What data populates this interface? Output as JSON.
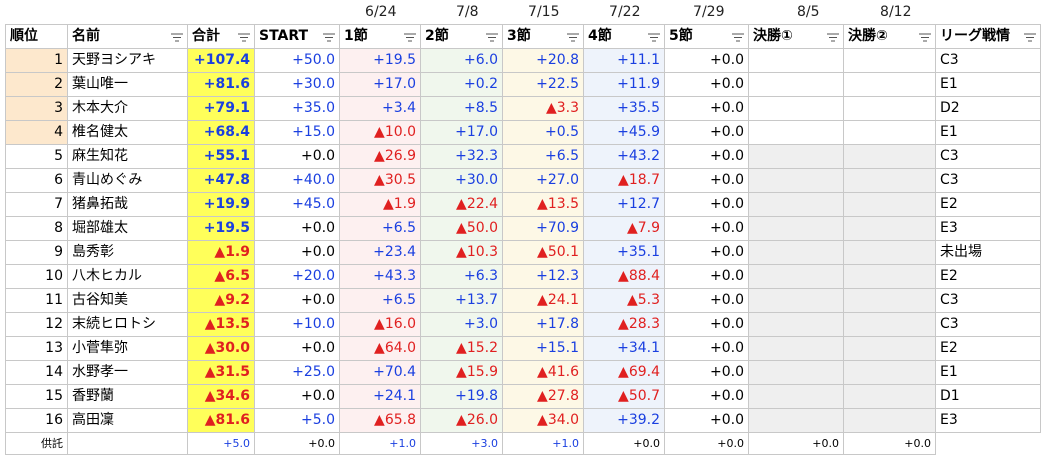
{
  "dates": [
    "6/24",
    "7/8",
    "7/15",
    "7/22",
    "7/29",
    "8/5",
    "8/12"
  ],
  "headers": [
    "順位",
    "名前",
    "合計",
    "START",
    "1節",
    "2節",
    "3節",
    "4節",
    "5節",
    "決勝①",
    "決勝②",
    "リーグ戦情"
  ],
  "table": {
    "rows": [
      {
        "rank": 1,
        "name": "天野ヨシアキ",
        "total": "+107.4",
        "start": "+50.0",
        "s1": "+19.5",
        "s2": "+6.0",
        "s3": "+20.8",
        "s4": "+11.1",
        "s5": "+0.0",
        "league": "C3"
      },
      {
        "rank": 2,
        "name": "葉山唯一",
        "total": "+81.6",
        "start": "+30.0",
        "s1": "+17.0",
        "s2": "+0.2",
        "s3": "+22.5",
        "s4": "+11.9",
        "s5": "+0.0",
        "league": "E1"
      },
      {
        "rank": 3,
        "name": "木本大介",
        "total": "+79.1",
        "start": "+35.0",
        "s1": "+3.4",
        "s2": "+8.5",
        "s3": "▲3.3",
        "s4": "+35.5",
        "s5": "+0.0",
        "league": "D2"
      },
      {
        "rank": 4,
        "name": "椎名健太",
        "total": "+68.4",
        "start": "+15.0",
        "s1": "▲10.0",
        "s2": "+17.0",
        "s3": "+0.5",
        "s4": "+45.9",
        "s5": "+0.0",
        "league": "E1"
      },
      {
        "rank": 5,
        "name": "麻生知花",
        "total": "+55.1",
        "start": "+0.0",
        "s1": "▲26.9",
        "s2": "+32.3",
        "s3": "+6.5",
        "s4": "+43.2",
        "s5": "+0.0",
        "league": "C3"
      },
      {
        "rank": 6,
        "name": "青山めぐみ",
        "total": "+47.8",
        "start": "+40.0",
        "s1": "▲30.5",
        "s2": "+30.0",
        "s3": "+27.0",
        "s4": "▲18.7",
        "s5": "+0.0",
        "league": "C3"
      },
      {
        "rank": 7,
        "name": "猪鼻拓哉",
        "total": "+19.9",
        "start": "+45.0",
        "s1": "▲1.9",
        "s2": "▲22.4",
        "s3": "▲13.5",
        "s4": "+12.7",
        "s5": "+0.0",
        "league": "E2"
      },
      {
        "rank": 8,
        "name": "堀部雄太",
        "total": "+19.5",
        "start": "+0.0",
        "s1": "+6.5",
        "s2": "▲50.0",
        "s3": "+70.9",
        "s4": "▲7.9",
        "s5": "+0.0",
        "league": "E3"
      },
      {
        "rank": 9,
        "name": "島秀彰",
        "total": "▲1.9",
        "start": "+0.0",
        "s1": "+23.4",
        "s2": "▲10.3",
        "s3": "▲50.1",
        "s4": "+35.1",
        "s5": "+0.0",
        "league": "未出場"
      },
      {
        "rank": 10,
        "name": "八木ヒカル",
        "total": "▲6.5",
        "start": "+20.0",
        "s1": "+43.3",
        "s2": "+6.3",
        "s3": "+12.3",
        "s4": "▲88.4",
        "s5": "+0.0",
        "league": "E2"
      },
      {
        "rank": 11,
        "name": "古谷知美",
        "total": "▲9.2",
        "start": "+0.0",
        "s1": "+6.5",
        "s2": "+13.7",
        "s3": "▲24.1",
        "s4": "▲5.3",
        "s5": "+0.0",
        "league": "C3"
      },
      {
        "rank": 12,
        "name": "末続ヒロトシ",
        "total": "▲13.5",
        "start": "+10.0",
        "s1": "▲16.0",
        "s2": "+3.0",
        "s3": "+17.8",
        "s4": "▲28.3",
        "s5": "+0.0",
        "league": "C3"
      },
      {
        "rank": 13,
        "name": "小菅隼弥",
        "total": "▲30.0",
        "start": "+0.0",
        "s1": "▲64.0",
        "s2": "▲15.2",
        "s3": "+15.1",
        "s4": "+34.1",
        "s5": "+0.0",
        "league": "E2"
      },
      {
        "rank": 14,
        "name": "水野孝一",
        "total": "▲31.5",
        "start": "+25.0",
        "s1": "+70.4",
        "s2": "▲15.9",
        "s3": "▲41.6",
        "s4": "▲69.4",
        "s5": "+0.0",
        "league": "E1"
      },
      {
        "rank": 15,
        "name": "香野蘭",
        "total": "▲34.6",
        "start": "+0.0",
        "s1": "+24.1",
        "s2": "+19.8",
        "s3": "▲27.8",
        "s4": "▲50.7",
        "s5": "+0.0",
        "league": "D1"
      },
      {
        "rank": 16,
        "name": "高田凜",
        "total": "▲81.6",
        "start": "+5.0",
        "s1": "▲65.8",
        "s2": "▲26.0",
        "s3": "▲34.0",
        "s4": "+39.2",
        "s5": "+0.0",
        "league": "E3"
      }
    ],
    "deposit": {
      "name": "供託",
      "total": "+5.0",
      "start": "+0.0",
      "s1": "+1.0",
      "s2": "+3.0",
      "s3": "+1.0",
      "s4": "+0.0",
      "s5": "+0.0",
      "f1": "+0.0",
      "f2": "+0.0"
    }
  }
}
